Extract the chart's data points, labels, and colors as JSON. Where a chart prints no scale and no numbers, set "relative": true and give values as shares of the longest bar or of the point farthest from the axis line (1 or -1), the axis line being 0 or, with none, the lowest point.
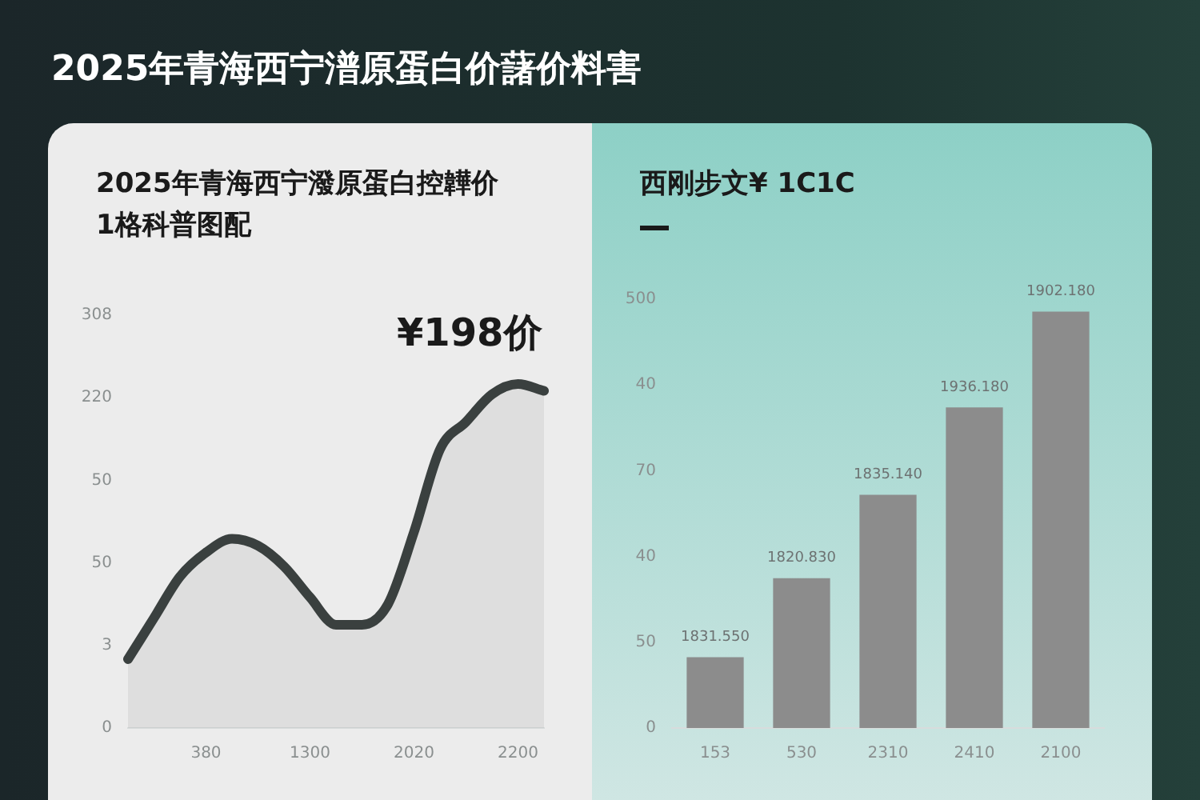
{
  "chart_data": [
    {
      "type": "other",
      "title": "2025年青海西宁潽原蛋白价藷价料害"
    },
    {
      "type": "area",
      "title": "2025年青海西宁潑原蛋白控韡价\n1格科普图配",
      "relative": true,
      "categories": [
        null,
        null,
        null,
        "380",
        null,
        null,
        null,
        "1300",
        null,
        null,
        null,
        "2020",
        null,
        null,
        null,
        "2200",
        null
      ],
      "series": [
        {
          "color": "#3a403f",
          "values": [
            0.2,
            0.32,
            0.44,
            0.51,
            0.55,
            0.53,
            0.47,
            0.38,
            0.3,
            0.3,
            0.36,
            0.57,
            0.81,
            0.89,
            0.97,
            1,
            0.98
          ]
        }
      ],
      "grid": false,
      "legend": false,
      "annotations": [
        "0",
        "3",
        "50",
        "50",
        "220",
        "308",
        {
          "text": "¥198价",
          "x": "2200",
          "y": 1
        }
      ]
    },
    {
      "type": "bar",
      "title": "西刚步文¥ 1C1C",
      "relative": true,
      "categories": [
        "153",
        "530",
        "2310",
        "2410",
        "2100"
      ],
      "series": [
        {
          "color": "#8c8c8c",
          "values": [
            0.17,
            0.36,
            0.56,
            0.77,
            1
          ]
        }
      ],
      "grid": false,
      "legend": false,
      "annotations": [
        "0",
        "50",
        "40",
        "70",
        "40",
        "500",
        {
          "text": "1831.550",
          "x": "153",
          "y": 0.17
        },
        {
          "text": "1820.830",
          "x": "530",
          "y": 0.36
        },
        {
          "text": "1835.140",
          "x": "2310",
          "y": 0.56
        },
        {
          "text": "1936.180",
          "x": "2410",
          "y": 0.77
        },
        {
          "text": "1902.180",
          "x": "2100",
          "y": 1
        }
      ]
    }
  ]
}
